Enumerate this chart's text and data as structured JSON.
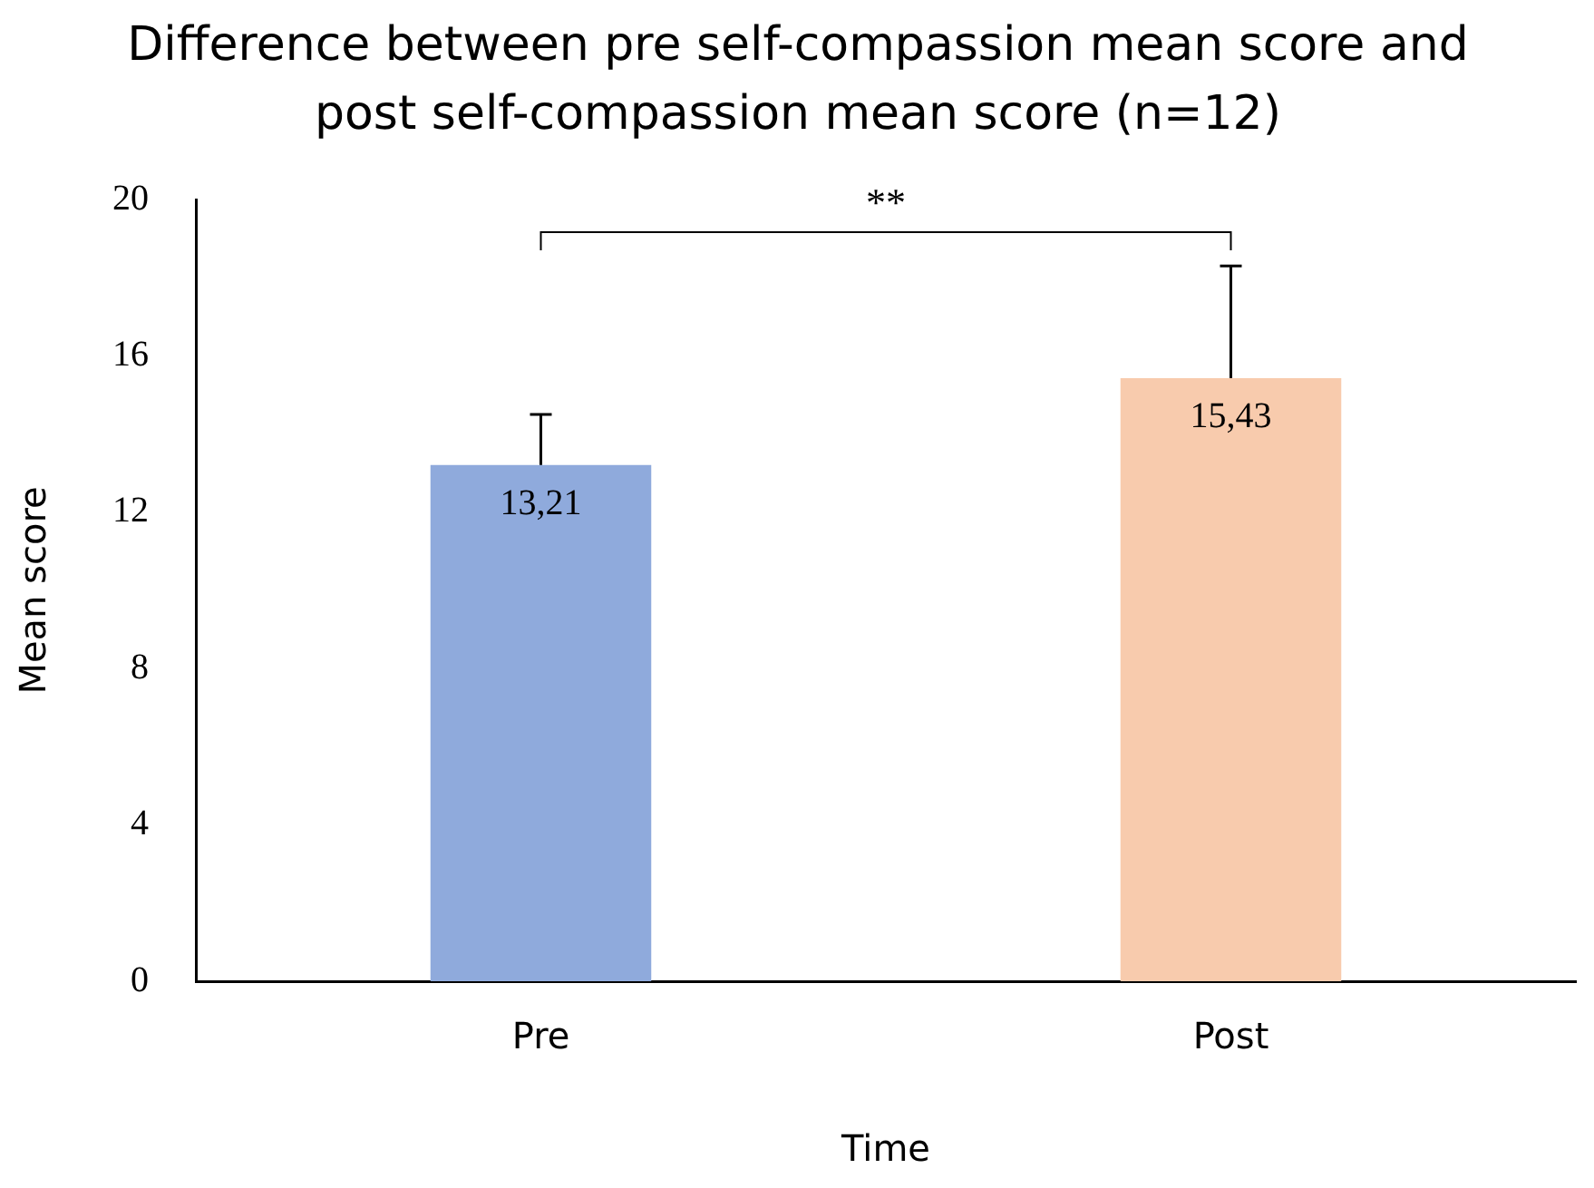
{
  "chart_data": {
    "type": "bar",
    "title": "Difference between pre self-compassion mean score and post self-compassion mean score (n=12)",
    "xlabel": "Time",
    "ylabel": "Mean score",
    "categories": [
      "Pre",
      "Post"
    ],
    "values": [
      13.21,
      15.43
    ],
    "colors": [
      "#8faadc",
      "#f8cbad"
    ],
    "errors": [
      [
        13.21,
        14.5
      ],
      [
        15.43,
        18.3
      ]
    ],
    "value_labels": [
      "13,21",
      "15,43"
    ],
    "ylim": [
      0,
      20
    ],
    "yticks": [
      0,
      4,
      8,
      12,
      16,
      20
    ],
    "annotations": [
      "**"
    ],
    "grid": false,
    "legend": false
  }
}
